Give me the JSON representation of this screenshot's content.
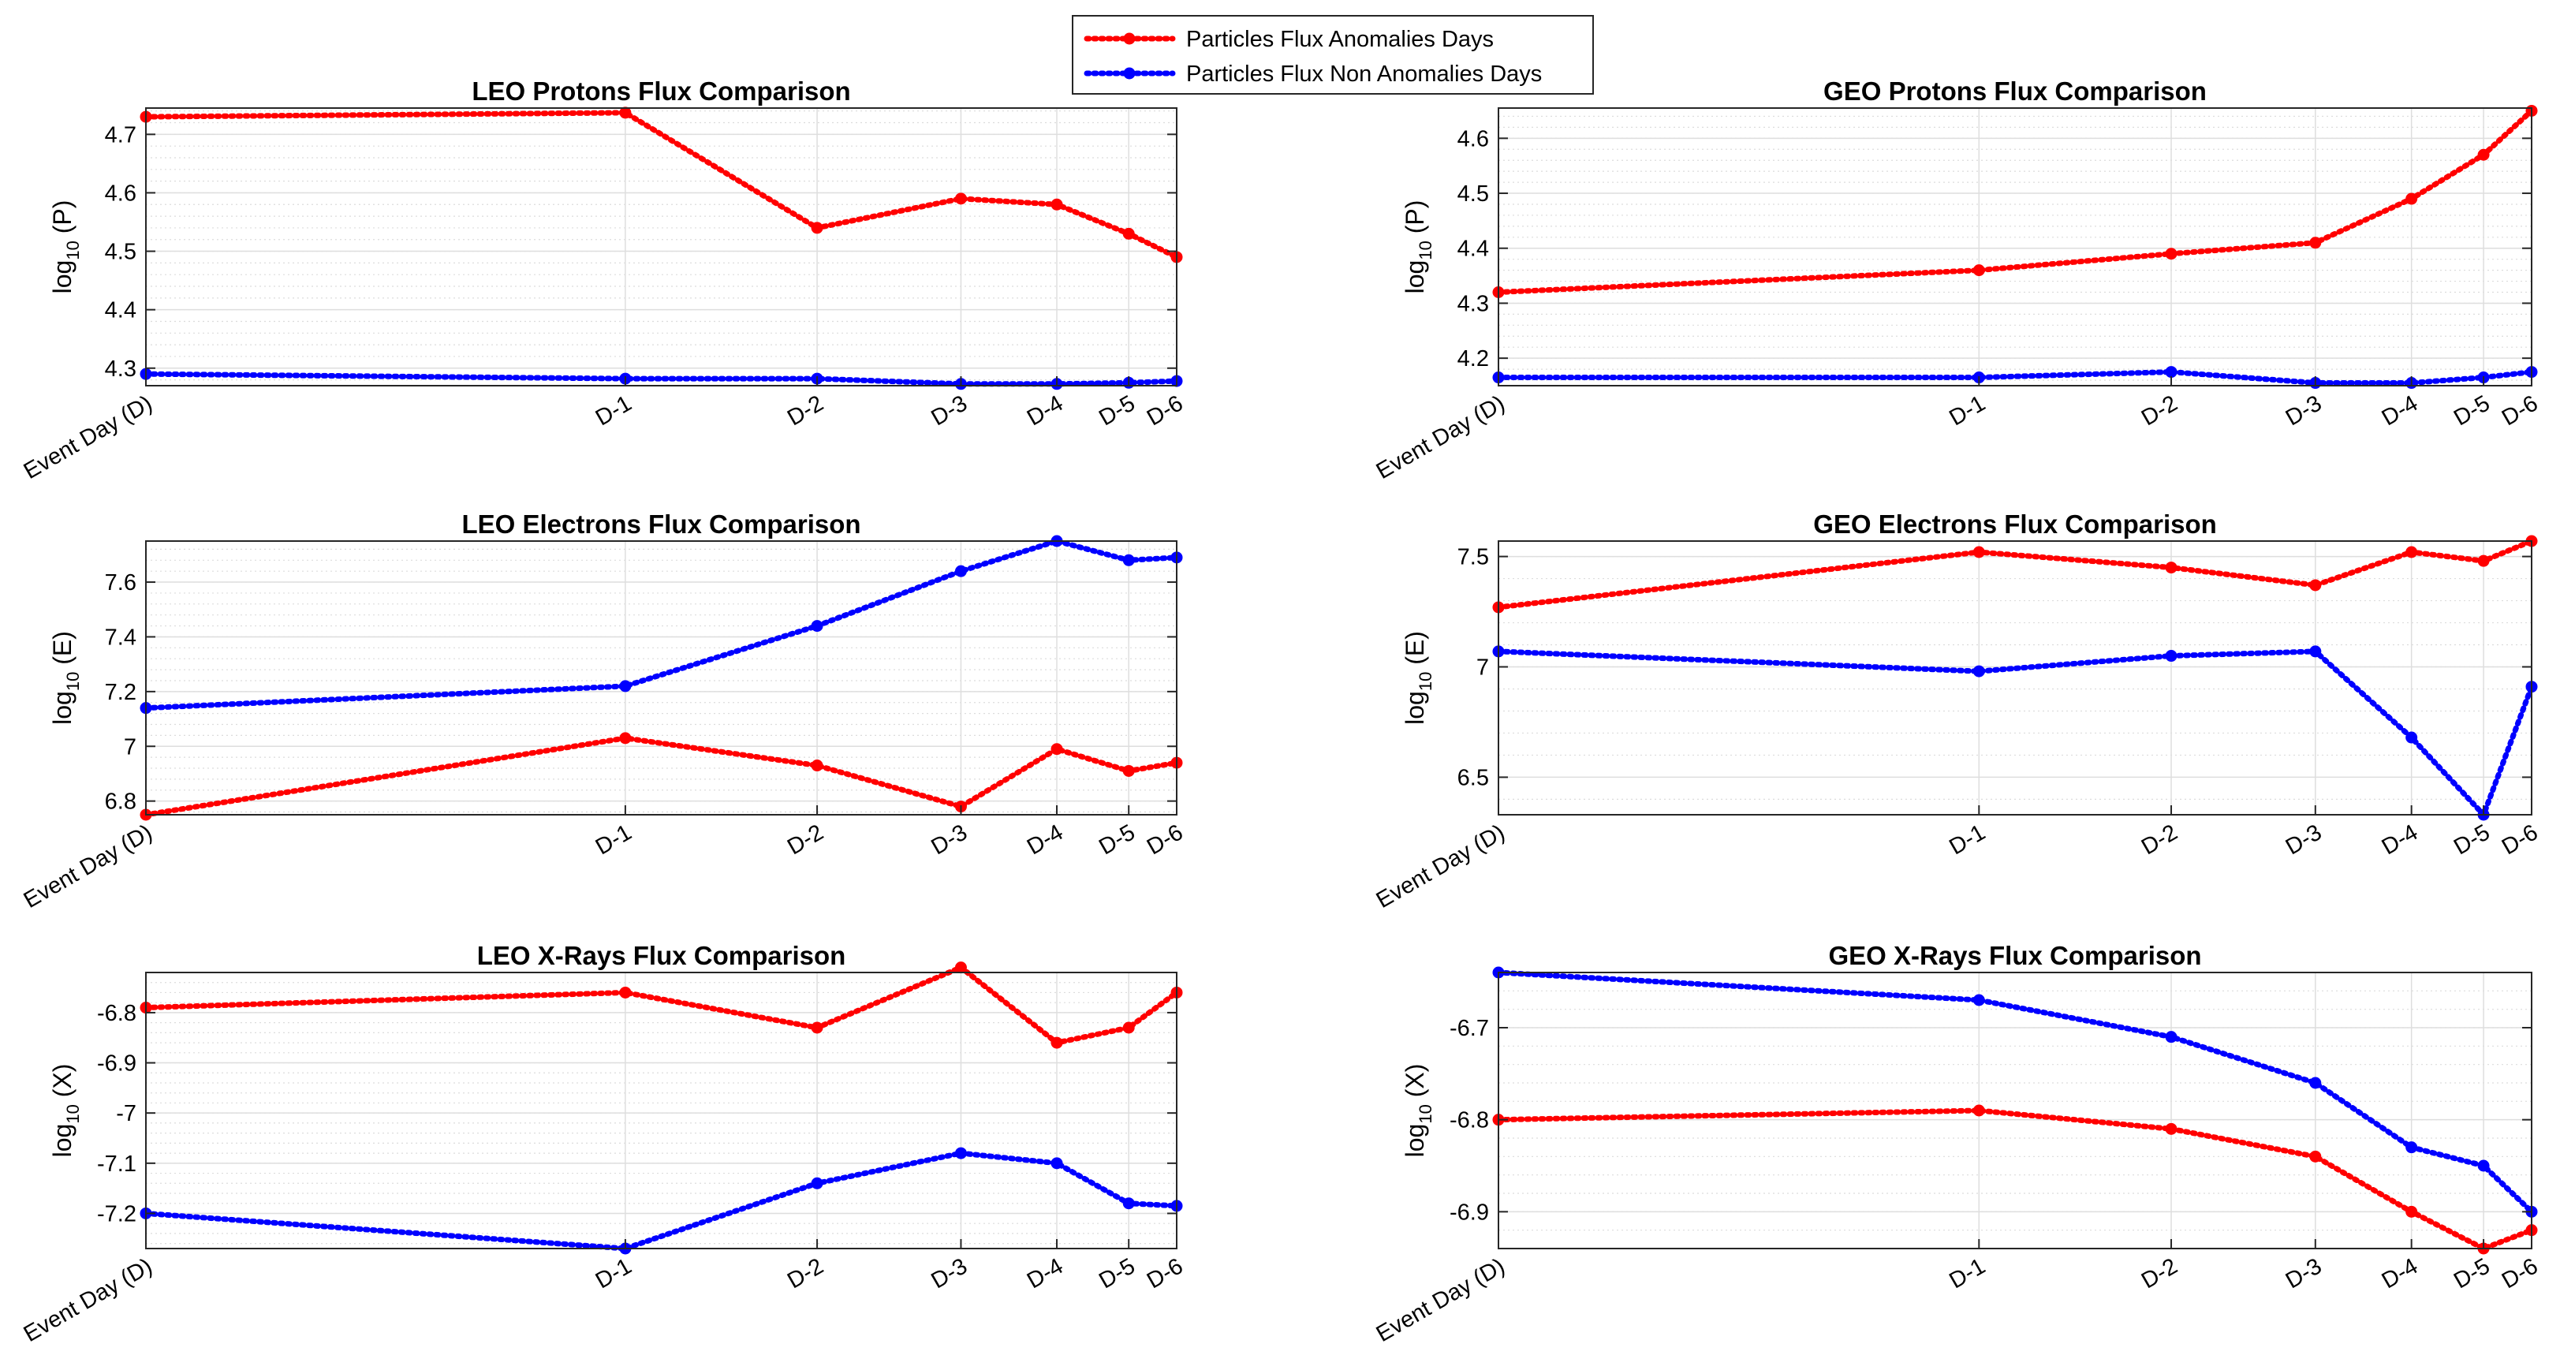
{
  "legend": {
    "items": [
      {
        "label": "Particles Flux Anomalies Days",
        "color": "#ff0000"
      },
      {
        "label": "Particles Flux Non Anomalies Days",
        "color": "#0000ff"
      }
    ],
    "placement": "top-center"
  },
  "chart_data": [
    {
      "type": "line",
      "title": "LEO Protons Flux Comparison",
      "ylabel_main": "log",
      "ylabel_sub": "10",
      "ylabel_rest": " (P)",
      "categories": [
        "Event Day (D)",
        "D-1",
        "D-2",
        "D-3",
        "D-4",
        "D-5",
        "D-6"
      ],
      "x": [
        0,
        5,
        7,
        8.5,
        9.5,
        10.25,
        10.75
      ],
      "xlim": [
        0,
        10.75
      ],
      "ylim": [
        4.27,
        4.745
      ],
      "yticks": [
        4.3,
        4.4,
        4.5,
        4.6,
        4.7
      ],
      "yticklabels": [
        "4.3",
        "4.4",
        "4.5",
        "4.6",
        "4.7"
      ],
      "grid": true,
      "series": [
        {
          "name": "Particles Flux Anomalies Days",
          "color": "#ff0000",
          "values": [
            4.73,
            4.737,
            4.54,
            4.59,
            4.58,
            4.53,
            4.49
          ]
        },
        {
          "name": "Particles Flux Non Anomalies Days",
          "color": "#0000ff",
          "values": [
            4.29,
            4.282,
            4.282,
            4.273,
            4.273,
            4.275,
            4.278
          ]
        }
      ]
    },
    {
      "type": "line",
      "title": "GEO Protons Flux Comparison",
      "ylabel_main": "log",
      "ylabel_sub": "10",
      "ylabel_rest": " (P)",
      "categories": [
        "Event Day (D)",
        "D-1",
        "D-2",
        "D-3",
        "D-4",
        "D-5",
        "D-6"
      ],
      "x": [
        0,
        5,
        7,
        8.5,
        9.5,
        10.25,
        10.75
      ],
      "xlim": [
        0,
        10.75
      ],
      "ylim": [
        4.15,
        4.655
      ],
      "yticks": [
        4.2,
        4.3,
        4.4,
        4.5,
        4.6
      ],
      "yticklabels": [
        "4.2",
        "4.3",
        "4.4",
        "4.5",
        "4.6"
      ],
      "grid": true,
      "series": [
        {
          "name": "Particles Flux Anomalies Days",
          "color": "#ff0000",
          "values": [
            4.32,
            4.36,
            4.39,
            4.41,
            4.49,
            4.57,
            4.65
          ]
        },
        {
          "name": "Particles Flux Non Anomalies Days",
          "color": "#0000ff",
          "values": [
            4.165,
            4.165,
            4.175,
            4.155,
            4.155,
            4.165,
            4.175
          ]
        }
      ]
    },
    {
      "type": "line",
      "title": "LEO Electrons Flux Comparison",
      "ylabel_main": "log",
      "ylabel_sub": "10",
      "ylabel_rest": " (E)",
      "categories": [
        "Event Day (D)",
        "D-1",
        "D-2",
        "D-3",
        "D-4",
        "D-5",
        "D-6"
      ],
      "x": [
        0,
        5,
        7,
        8.5,
        9.5,
        10.25,
        10.75
      ],
      "xlim": [
        0,
        10.75
      ],
      "ylim": [
        6.75,
        7.75
      ],
      "yticks": [
        6.8,
        7.0,
        7.2,
        7.4,
        7.6
      ],
      "yticklabels": [
        "6.8",
        "7",
        "7.2",
        "7.4",
        "7.6"
      ],
      "grid": true,
      "series": [
        {
          "name": "Particles Flux Anomalies Days",
          "color": "#ff0000",
          "values": [
            6.75,
            7.03,
            6.93,
            6.78,
            6.99,
            6.91,
            6.94
          ]
        },
        {
          "name": "Particles Flux Non Anomalies Days",
          "color": "#0000ff",
          "values": [
            7.14,
            7.22,
            7.44,
            7.64,
            7.75,
            7.68,
            7.69
          ]
        }
      ]
    },
    {
      "type": "line",
      "title": "GEO Electrons Flux Comparison",
      "ylabel_main": "log",
      "ylabel_sub": "10",
      "ylabel_rest": " (E)",
      "categories": [
        "Event Day (D)",
        "D-1",
        "D-2",
        "D-3",
        "D-4",
        "D-5",
        "D-6"
      ],
      "x": [
        0,
        5,
        7,
        8.5,
        9.5,
        10.25,
        10.75
      ],
      "xlim": [
        0,
        10.75
      ],
      "ylim": [
        6.33,
        7.57
      ],
      "yticks": [
        6.5,
        7.0,
        7.5
      ],
      "yticklabels": [
        "6.5",
        "7",
        "7.5"
      ],
      "grid": true,
      "series": [
        {
          "name": "Particles Flux Anomalies Days",
          "color": "#ff0000",
          "values": [
            7.27,
            7.52,
            7.45,
            7.37,
            7.52,
            7.48,
            7.57
          ]
        },
        {
          "name": "Particles Flux Non Anomalies Days",
          "color": "#0000ff",
          "values": [
            7.07,
            6.98,
            7.05,
            7.07,
            6.68,
            6.33,
            6.91
          ]
        }
      ]
    },
    {
      "type": "line",
      "title": "LEO X-Rays Flux Comparison",
      "ylabel_main": "log",
      "ylabel_sub": "10",
      "ylabel_rest": " (X)",
      "categories": [
        "Event Day (D)",
        "D-1",
        "D-2",
        "D-3",
        "D-4",
        "D-5",
        "D-6"
      ],
      "x": [
        0,
        5,
        7,
        8.5,
        9.5,
        10.25,
        10.75
      ],
      "xlim": [
        0,
        10.75
      ],
      "ylim": [
        -7.27,
        -6.72
      ],
      "yticks": [
        -7.2,
        -7.1,
        -7.0,
        -6.9,
        -6.8
      ],
      "yticklabels": [
        "-7.2",
        "-7.1",
        "-7",
        "-6.9",
        "-6.8"
      ],
      "grid": true,
      "series": [
        {
          "name": "Particles Flux Anomalies Days",
          "color": "#ff0000",
          "values": [
            -6.79,
            -6.76,
            -6.83,
            -6.71,
            -6.86,
            -6.83,
            -6.76
          ]
        },
        {
          "name": "Particles Flux Non Anomalies Days",
          "color": "#0000ff",
          "values": [
            -7.2,
            -7.27,
            -7.14,
            -7.08,
            -7.1,
            -7.18,
            -7.185
          ]
        }
      ]
    },
    {
      "type": "line",
      "title": "GEO X-Rays Flux Comparison",
      "ylabel_main": "log",
      "ylabel_sub": "10",
      "ylabel_rest": " (X)",
      "categories": [
        "Event Day (D)",
        "D-1",
        "D-2",
        "D-3",
        "D-4",
        "D-5",
        "D-6"
      ],
      "x": [
        0,
        5,
        7,
        8.5,
        9.5,
        10.25,
        10.75
      ],
      "xlim": [
        0,
        10.75
      ],
      "ylim": [
        -6.94,
        -6.64
      ],
      "yticks": [
        -6.9,
        -6.8,
        -6.7
      ],
      "yticklabels": [
        "-6.9",
        "-6.8",
        "-6.7"
      ],
      "grid": true,
      "series": [
        {
          "name": "Particles Flux Anomalies Days",
          "color": "#ff0000",
          "values": [
            -6.8,
            -6.79,
            -6.81,
            -6.84,
            -6.9,
            -6.94,
            -6.92
          ]
        },
        {
          "name": "Particles Flux Non Anomalies Days",
          "color": "#0000ff",
          "values": [
            -6.64,
            -6.67,
            -6.71,
            -6.76,
            -6.83,
            -6.85,
            -6.9
          ]
        }
      ]
    }
  ]
}
